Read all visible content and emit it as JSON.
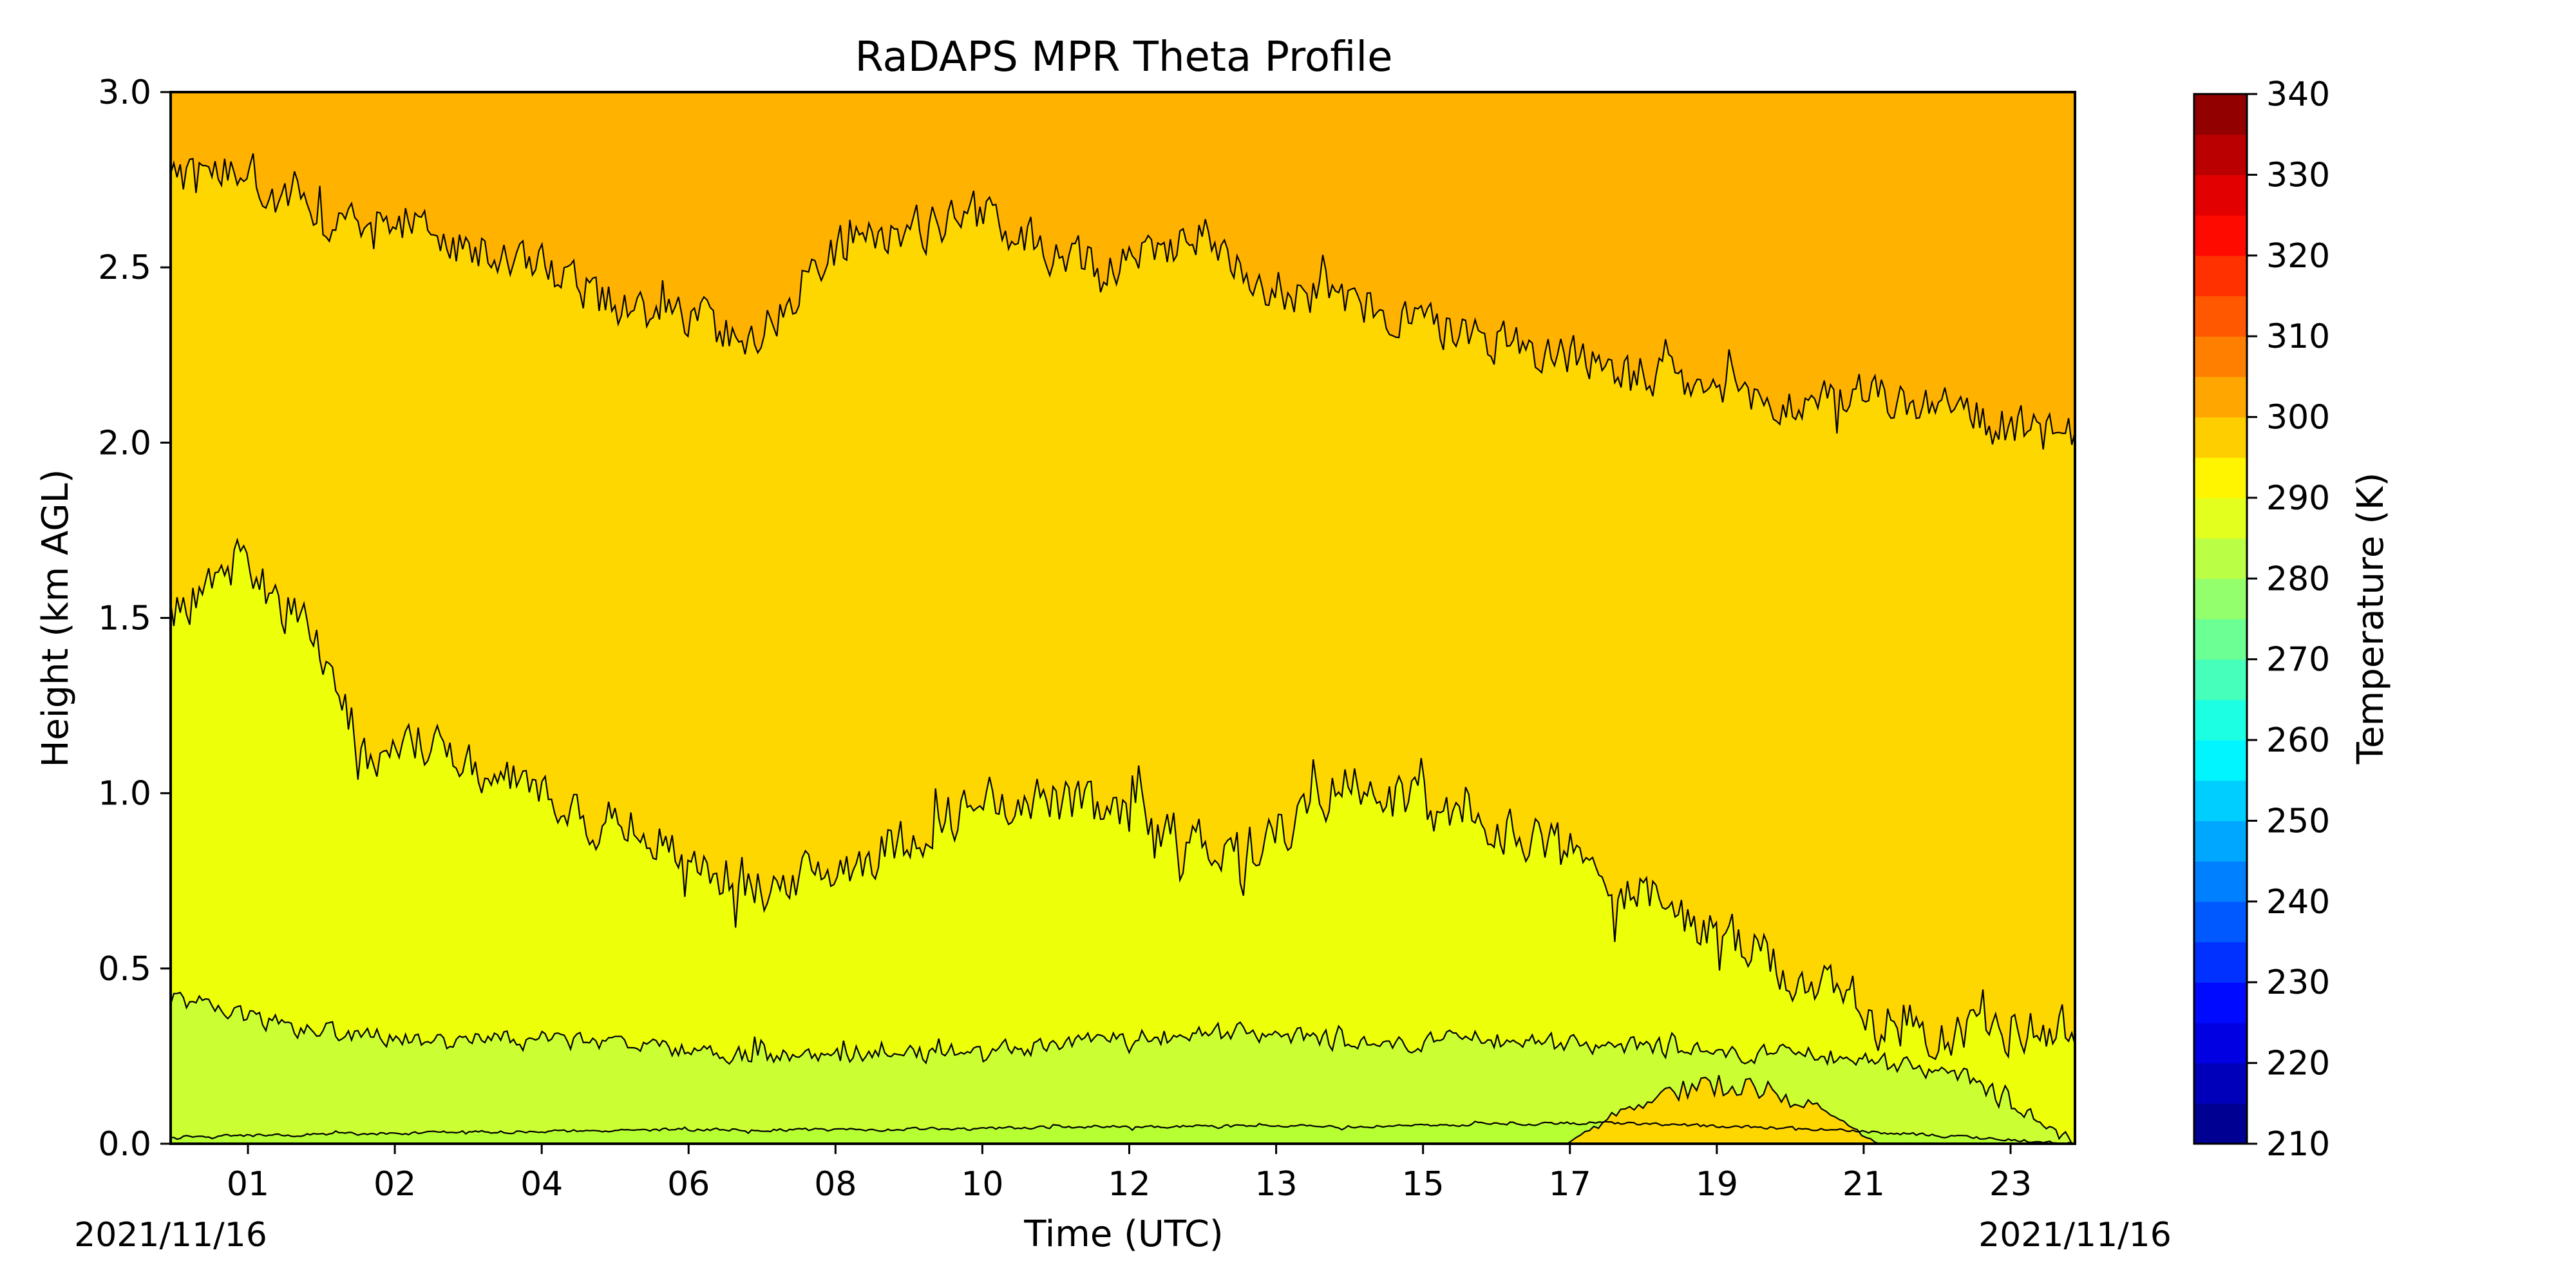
{
  "chart_data": {
    "type": "heatmap",
    "title": "RaDAPS MPR Theta Profile",
    "xlabel": "Time (UTC)",
    "ylabel": "Height (km AGL)",
    "x_tick_labels": [
      "01",
      "02",
      "04",
      "06",
      "08",
      "10",
      "12",
      "13",
      "15",
      "17",
      "19",
      "21",
      "23"
    ],
    "x_corner_labels": {
      "left": "2021/11/16",
      "right": "2021/11/16"
    },
    "ylim": [
      0.0,
      3.0
    ],
    "y_ticks": [
      "0.0",
      "0.5",
      "1.0",
      "1.5",
      "2.0",
      "2.5",
      "3.0"
    ],
    "colorbar": {
      "label": "Temperature (K)",
      "range": [
        210,
        340
      ],
      "step": 5,
      "tick_labels": [
        "210",
        "220",
        "230",
        "240",
        "250",
        "260",
        "270",
        "280",
        "290",
        "300",
        "310",
        "320",
        "330",
        "340"
      ]
    },
    "contour_levels_K": [
      285,
      290,
      295,
      300
    ],
    "contours": [
      {
        "level": 285,
        "fill": "#b6ff33",
        "approx_height_km": [
          0.02,
          0.03,
          0.04,
          0.04,
          0.05,
          0.05,
          0.06,
          0.04,
          0.0
        ]
      },
      {
        "level": 290,
        "fill": "#ccff33",
        "approx_height_km": [
          0.42,
          0.33,
          0.3,
          0.3,
          0.27,
          0.25,
          0.25,
          0.27,
          0.3,
          0.32,
          0.28,
          0.3,
          0.28,
          0.26,
          0.25,
          0.2,
          0.0
        ]
      },
      {
        "level": 295,
        "fill": "#eeff0a",
        "approx_height_km": [
          1.5,
          1.65,
          1.5,
          1.1,
          1.15,
          1.05,
          0.95,
          0.9,
          0.8,
          0.72,
          0.78,
          0.85,
          0.95,
          1.0,
          0.95,
          0.9,
          0.85,
          0.9,
          1.05,
          0.95,
          0.9,
          0.88,
          0.75,
          0.65,
          0.55,
          0.45,
          0.35,
          0.32,
          0.33,
          0.33
        ]
      },
      {
        "level": 300,
        "fill": "#ffd700",
        "approx_height_km": [
          2.75,
          2.8,
          2.6,
          2.65,
          2.55,
          2.5,
          2.4,
          2.35,
          2.3,
          2.55,
          2.6,
          2.65,
          2.55,
          2.5,
          2.6,
          2.45,
          2.4,
          2.35,
          2.3,
          2.25,
          2.2,
          2.15,
          2.1,
          2.15,
          2.1,
          2.05,
          2.0
        ]
      }
    ],
    "background_fill": "#ffb300",
    "warm_pocket": {
      "x_range_hours": [
        17.6,
        22.1
      ],
      "peak_height_km": 0.18
    },
    "colors": {
      "band_285_290": "#ccff33",
      "band_290_295": "#eeff0a",
      "band_295_300": "#ffd700",
      "band_300_305": "#ffb300"
    }
  }
}
